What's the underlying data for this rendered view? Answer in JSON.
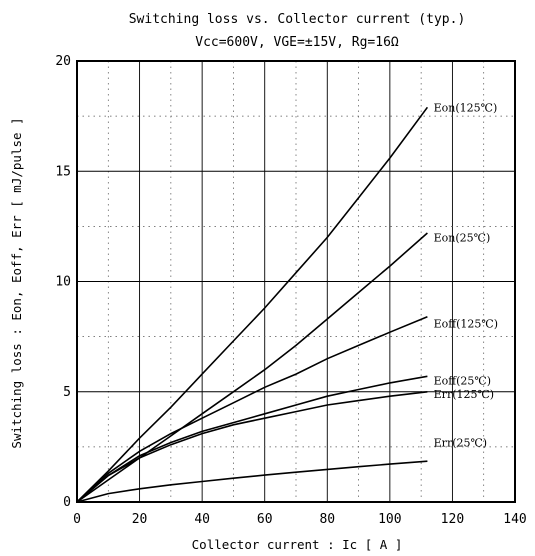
{
  "chart_data": {
    "type": "line",
    "title": "Switching loss vs. Collector current (typ.)",
    "subtitle": "Vcc=600V, VGE=±15V, Rg=16Ω",
    "xlabel": "Collector current : Ic [ A ]",
    "ylabel": "Switching loss : Eon, Eoff, Err [ mJ/pulse ]",
    "xlim": [
      0,
      140
    ],
    "ylim": [
      0,
      20
    ],
    "xticks": [
      0,
      20,
      40,
      60,
      80,
      100,
      120,
      140
    ],
    "yticks": [
      0,
      5,
      10,
      15,
      20
    ],
    "x_minor_step": 10,
    "y_minor_step": 2.5,
    "grid": true,
    "series": [
      {
        "name": "Eon(125℃)",
        "x": [
          0,
          10,
          20,
          30,
          40,
          50,
          60,
          70,
          80,
          90,
          100,
          112
        ],
        "y": [
          0,
          1.4,
          2.9,
          4.3,
          5.8,
          7.3,
          8.8,
          10.4,
          12.0,
          13.8,
          15.6,
          17.9
        ]
      },
      {
        "name": "Eon(25℃)",
        "x": [
          0,
          10,
          20,
          30,
          40,
          50,
          60,
          70,
          80,
          90,
          100,
          112
        ],
        "y": [
          0,
          1.0,
          2.0,
          3.0,
          4.0,
          5.0,
          6.0,
          7.1,
          8.3,
          9.5,
          10.7,
          12.2
        ]
      },
      {
        "name": "Eoff(125℃)",
        "x": [
          0,
          10,
          20,
          30,
          40,
          50,
          60,
          70,
          80,
          90,
          100,
          112
        ],
        "y": [
          0,
          1.3,
          2.3,
          3.1,
          3.8,
          4.5,
          5.2,
          5.8,
          6.5,
          7.1,
          7.7,
          8.4
        ]
      },
      {
        "name": "Eoff(25℃)",
        "x": [
          0,
          10,
          20,
          30,
          40,
          50,
          60,
          70,
          80,
          90,
          100,
          112
        ],
        "y": [
          0,
          1.2,
          2.1,
          2.7,
          3.2,
          3.6,
          4.0,
          4.4,
          4.8,
          5.1,
          5.4,
          5.7
        ]
      },
      {
        "name": "Err(125℃)",
        "x": [
          0,
          10,
          20,
          30,
          40,
          50,
          60,
          70,
          80,
          90,
          100,
          112
        ],
        "y": [
          0,
          1.2,
          2.0,
          2.6,
          3.1,
          3.5,
          3.8,
          4.1,
          4.4,
          4.6,
          4.8,
          5.0
        ]
      },
      {
        "name": "Err(25℃)",
        "x": [
          0,
          10,
          20,
          30,
          40,
          50,
          60,
          70,
          80,
          90,
          100,
          112
        ],
        "y": [
          0,
          0.38,
          0.6,
          0.78,
          0.93,
          1.08,
          1.22,
          1.35,
          1.48,
          1.6,
          1.72,
          1.85
        ]
      }
    ],
    "curve_label_anchor": [
      {
        "x": 114,
        "y": 17.9
      },
      {
        "x": 114,
        "y": 12.0
      },
      {
        "x": 114,
        "y": 8.1
      },
      {
        "x": 114,
        "y": 5.5
      },
      {
        "x": 114,
        "y": 4.9
      },
      {
        "x": 114,
        "y": 2.7
      }
    ]
  }
}
